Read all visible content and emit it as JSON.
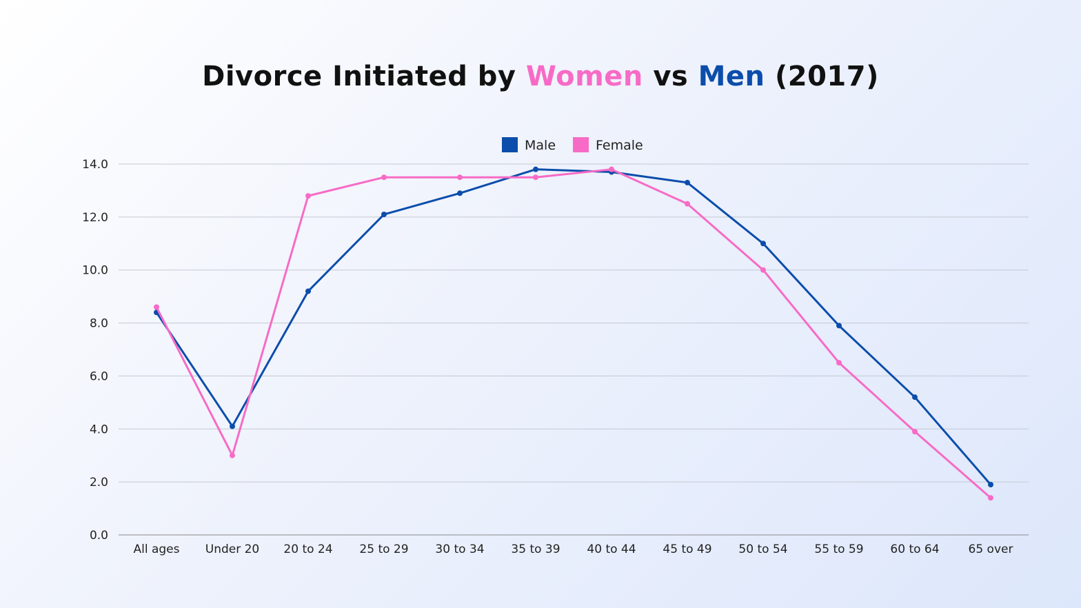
{
  "chart_data": {
    "type": "line",
    "title": {
      "prefix": "Divorce Initiated by ",
      "women": "Women",
      "middle": " vs ",
      "men": "Men",
      "suffix": " (2017)"
    },
    "categories": [
      "All ages",
      "Under 20",
      "20 to 24",
      "25 to 29",
      "30 to 34",
      "35 to 39",
      "40 to 44",
      "45 to 49",
      "50 to 54",
      "55 to 59",
      "60 to 64",
      "65 over"
    ],
    "series": [
      {
        "name": "Male",
        "color": "#0b4dab",
        "values": [
          8.4,
          4.1,
          9.2,
          12.1,
          12.9,
          13.8,
          13.7,
          13.3,
          11.0,
          7.9,
          5.2,
          1.9
        ]
      },
      {
        "name": "Female",
        "color": "#f76bc6",
        "values": [
          8.6,
          3.0,
          12.8,
          13.5,
          13.5,
          13.5,
          13.8,
          12.5,
          10.0,
          6.5,
          3.9,
          1.4
        ]
      }
    ],
    "yticks": [
      "0.0",
      "2.0",
      "4.0",
      "6.0",
      "8.0",
      "10.0",
      "12.0",
      "14.0"
    ],
    "ylim": [
      0,
      14
    ],
    "grid": true,
    "legend": "top-center"
  }
}
